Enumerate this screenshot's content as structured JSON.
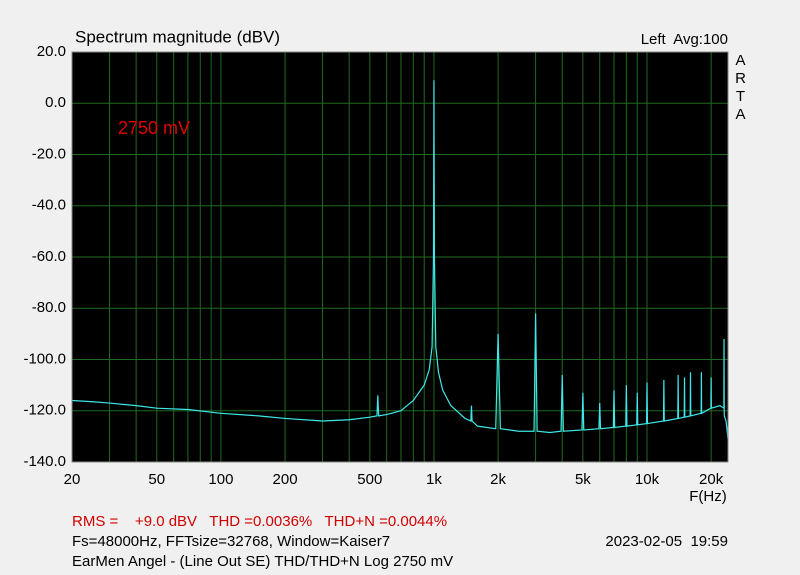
{
  "chart_data": {
    "type": "line",
    "title": "Spectrum magnitude (dBV)",
    "channel_info": "Left  Avg:100",
    "brand": "ARTA",
    "annotation": "2750 mV",
    "xlabel": "F(Hz)",
    "stats": "RMS =    +9.0 dBV   THD =0.0036%   THD+N =0.0044%",
    "settings": "Fs=48000Hz, FFTsize=32768, Window=Kaiser7",
    "timestamp": "2023-02-05  19:59",
    "description": "EarMen Angel - (Line Out SE) THD/THD+N Log 2750 mV",
    "color": "#3ee8e8",
    "x_log": true,
    "grid": true,
    "xlim": [
      20,
      24000
    ],
    "ylim": [
      -140,
      20
    ],
    "xticks": [
      20,
      50,
      100,
      200,
      500,
      {
        "value": 1000,
        "label": "1k"
      },
      {
        "value": 2000,
        "label": "2k"
      },
      {
        "value": 5000,
        "label": "5k"
      },
      {
        "value": 10000,
        "label": "10k"
      },
      {
        "value": 20000,
        "label": "20k"
      }
    ],
    "x_minor_grid": [
      30,
      40,
      60,
      70,
      80,
      90,
      300,
      400,
      600,
      700,
      800,
      900,
      3000,
      4000,
      6000,
      7000,
      8000,
      9000
    ],
    "yticks": [
      {
        "value": -140,
        "label": "-140.0"
      },
      {
        "value": -120,
        "label": "-120.0"
      },
      {
        "value": -100,
        "label": "-100.0"
      },
      {
        "value": -80,
        "label": "-80.0"
      },
      {
        "value": -60,
        "label": "-60.0"
      },
      {
        "value": -40,
        "label": "-40.0"
      },
      {
        "value": -20,
        "label": "-20.0"
      },
      {
        "value": 0,
        "label": "0.0"
      },
      {
        "value": 20,
        "label": "20.0"
      }
    ],
    "x": [
      20,
      25,
      30,
      40,
      50,
      70,
      100,
      150,
      200,
      300,
      400,
      500,
      540,
      545,
      550,
      600,
      700,
      800,
      900,
      950,
      980,
      995,
      1000,
      1005,
      1020,
      1050,
      1100,
      1200,
      1400,
      1490,
      1500,
      1510,
      1600,
      1950,
      2000,
      2050,
      2500,
      2950,
      3000,
      3050,
      3500,
      3950,
      4000,
      4050,
      4950,
      5000,
      5050,
      5950,
      6000,
      6050,
      6950,
      7000,
      7050,
      7950,
      8000,
      8050,
      8950,
      9000,
      9050,
      9950,
      10000,
      10050,
      11950,
      12000,
      12050,
      13950,
      14000,
      14050,
      14950,
      15000,
      15050,
      15950,
      16000,
      16050,
      17950,
      18000,
      18050,
      19950,
      20000,
      20050,
      22000,
      22950,
      23000,
      23050,
      23500,
      24000
    ],
    "values": [
      -116,
      -116.5,
      -117,
      -118,
      -119,
      -119.5,
      -121,
      -122,
      -123,
      -124,
      -123.5,
      -122.5,
      -122,
      -114,
      -122,
      -121.5,
      -120,
      -116,
      -110,
      -104,
      -95,
      -60,
      9,
      -60,
      -95,
      -105,
      -112,
      -118,
      -123,
      -124,
      -118,
      -124,
      -126,
      -127,
      -90,
      -127,
      -128,
      -128,
      -82,
      -128,
      -128.5,
      -128,
      -106,
      -128,
      -127.5,
      -113,
      -127.5,
      -127,
      -117,
      -127,
      -126.5,
      -112,
      -126.5,
      -126,
      -110,
      -126,
      -125.5,
      -113,
      -125.5,
      -125,
      -109,
      -125,
      -124,
      -108,
      -124,
      -123,
      -106,
      -123,
      -122.5,
      -107,
      -122.5,
      -122,
      -105,
      -122,
      -121,
      -105,
      -121,
      -119,
      -107,
      -119,
      -118,
      -119,
      -92,
      -122,
      -124,
      -131
    ]
  }
}
